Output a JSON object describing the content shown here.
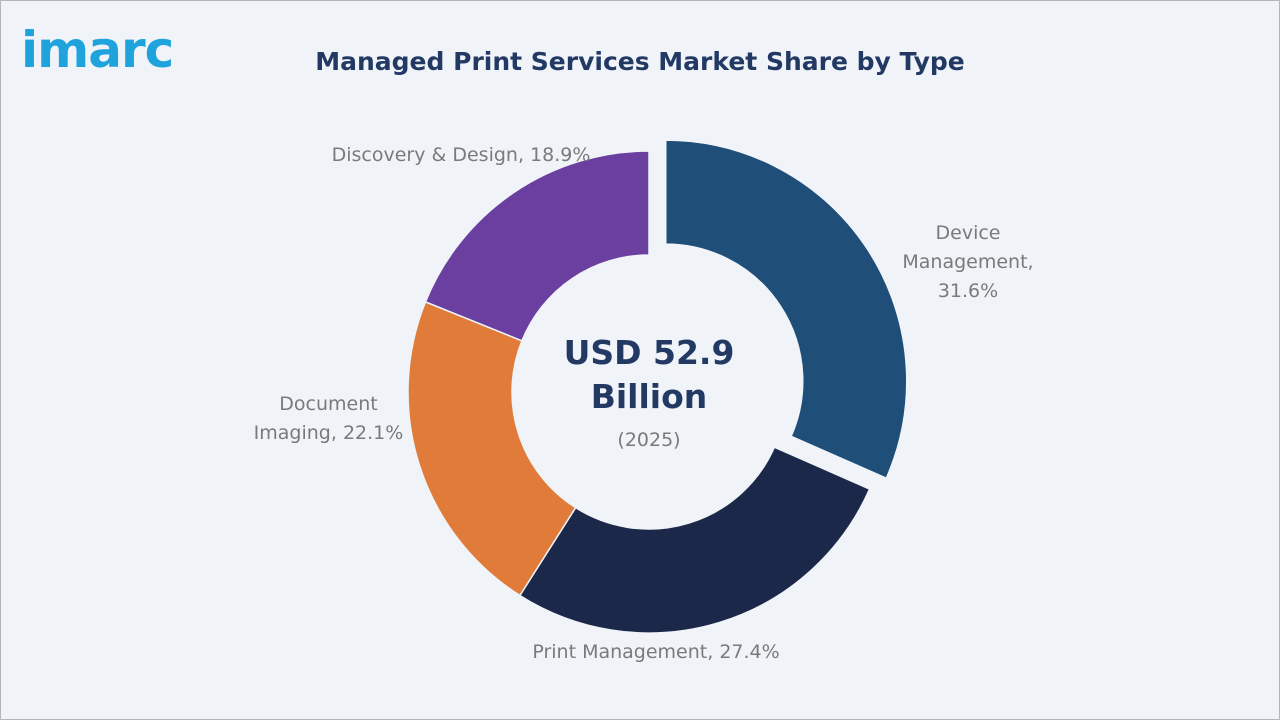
{
  "logo": "imarc",
  "chart_data": {
    "type": "donut",
    "title": "Managed Print Services Market Share by Type",
    "center_label": "USD 52.9 Billion",
    "center_sublabel": "(2025)",
    "values": [
      31.6,
      27.4,
      22.1,
      18.9
    ],
    "value_labels": [
      "Device Management, 31.6%",
      "Print Management, 27.4%",
      "Document Imaging, 22.1%",
      "Discovery & Design, 18.9%"
    ],
    "colors": [
      "#1f4e79",
      "#1b2849",
      "#e07b39",
      "#6a3f9f"
    ],
    "explode": [
      true,
      false,
      false,
      false
    ]
  }
}
